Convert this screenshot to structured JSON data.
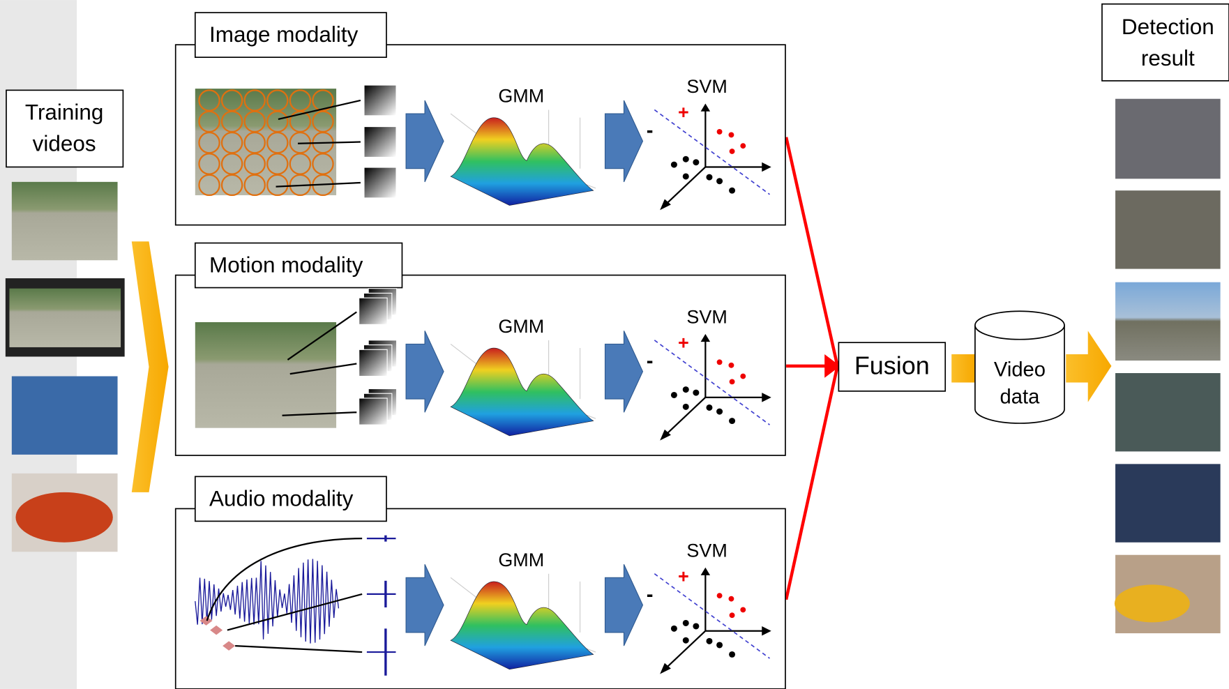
{
  "training": {
    "label": [
      "Training",
      "videos"
    ]
  },
  "modalities": [
    {
      "title": "Image modality",
      "gmm": "GMM",
      "svm": "SVM",
      "plus": "+",
      "minus": "-"
    },
    {
      "title": "Motion modality",
      "gmm": "GMM",
      "svm": "SVM",
      "plus": "+",
      "minus": "-"
    },
    {
      "title": "Audio modality",
      "gmm": "GMM",
      "svm": "SVM",
      "plus": "+",
      "minus": "-"
    }
  ],
  "fusion": "Fusion",
  "video_data": [
    "Video",
    "data"
  ],
  "detection": {
    "label": [
      "Detection",
      "result"
    ]
  }
}
